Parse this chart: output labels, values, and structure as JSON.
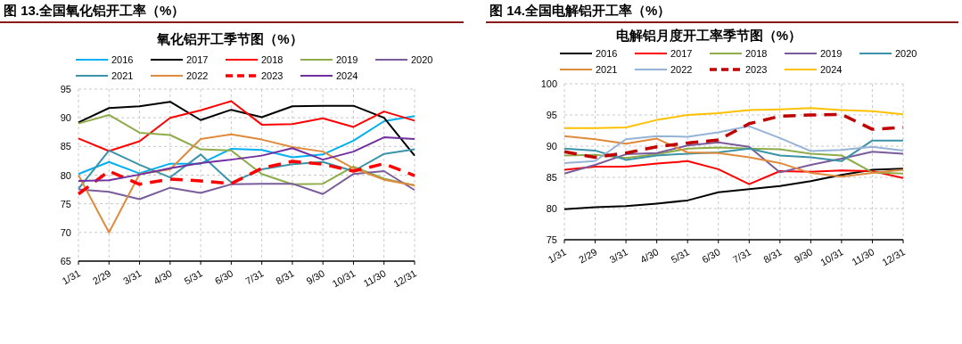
{
  "chart_data": [
    {
      "type": "line",
      "title": "图 13.全国氧化铝开工率（%）",
      "subtitle": "氧化铝开工季节图（%）",
      "categories": [
        "1/31",
        "2/29",
        "3/31",
        "4/30",
        "5/31",
        "6/30",
        "7/31",
        "8/31",
        "9/30",
        "10/31",
        "11/30",
        "12/31"
      ],
      "ylim": [
        65,
        95
      ],
      "yticks": [
        65,
        70,
        75,
        80,
        85,
        90,
        95
      ],
      "grid": true,
      "legend": "top",
      "series": [
        {
          "name": "2016",
          "color": "#00b0f0",
          "values": [
            80.2,
            82.3,
            80.3,
            82.0,
            82.0,
            84.6,
            84.4,
            83.1,
            83.6,
            86.0,
            89.4,
            90.3
          ]
        },
        {
          "name": "2017",
          "color": "#000000",
          "values": [
            89.2,
            91.7,
            92.0,
            92.8,
            89.6,
            91.4,
            90.1,
            92.0,
            92.1,
            92.1,
            90.0,
            83.4
          ]
        },
        {
          "name": "2018",
          "color": "#ff0000",
          "values": [
            86.4,
            84.2,
            85.9,
            90.0,
            91.3,
            92.9,
            88.8,
            88.9,
            89.9,
            88.4,
            91.1,
            89.5
          ]
        },
        {
          "name": "2019",
          "color": "#8fac4a",
          "values": [
            89.0,
            90.5,
            87.4,
            87.0,
            84.5,
            84.3,
            80.2,
            78.4,
            78.5,
            81.5,
            79.4,
            78.2
          ]
        },
        {
          "name": "2020",
          "color": "#7a5c9a",
          "values": [
            77.5,
            77.1,
            75.8,
            77.8,
            76.9,
            78.4,
            78.5,
            78.5,
            76.7,
            80.2,
            80.7,
            77.4
          ]
        },
        {
          "name": "2021",
          "color": "#3a93a8",
          "values": [
            77.6,
            84.3,
            81.8,
            79.6,
            83.6,
            78.7,
            81.0,
            81.9,
            82.3,
            80.7,
            83.7,
            84.5
          ]
        },
        {
          "name": "2022",
          "color": "#e08a3c",
          "values": [
            80.0,
            70.0,
            80.2,
            81.0,
            86.3,
            87.1,
            86.2,
            84.9,
            84.1,
            81.2,
            79.2,
            78.2
          ]
        },
        {
          "name": "2023",
          "color": "#ff0000",
          "line_style": "dashed",
          "values": [
            76.7,
            80.7,
            78.4,
            79.3,
            79.0,
            78.5,
            81.2,
            82.4,
            81.9,
            80.7,
            82.0,
            79.9
          ]
        },
        {
          "name": "2024",
          "color": "#7030a0",
          "values": [
            79.0,
            79.1,
            80.1,
            81.2,
            82.1,
            82.7,
            83.4,
            84.7,
            82.7,
            84.1,
            86.6,
            86.3
          ]
        }
      ]
    },
    {
      "type": "line",
      "title": "图 14.全国电解铝开工率（%）",
      "subtitle": "电解铝月度开工率季节图（%）",
      "categories": [
        "1/31",
        "2/29",
        "3/31",
        "4/30",
        "5/31",
        "6/30",
        "7/31",
        "8/31",
        "9/30",
        "10/31",
        "11/30",
        "12/31"
      ],
      "ylim": [
        75,
        100
      ],
      "yticks": [
        75,
        80,
        85,
        90,
        95,
        100
      ],
      "grid": true,
      "legend": "top",
      "series": [
        {
          "name": "2016",
          "color": "#000000",
          "values": [
            79.9,
            80.2,
            80.4,
            80.8,
            81.3,
            82.6,
            83.1,
            83.6,
            84.4,
            85.4,
            86.2,
            86.4
          ]
        },
        {
          "name": "2017",
          "color": "#ff0000",
          "values": [
            86.2,
            86.7,
            86.7,
            87.2,
            87.6,
            86.3,
            83.9,
            86.0,
            85.9,
            86.1,
            86.0,
            84.9
          ]
        },
        {
          "name": "2018",
          "color": "#8fac4a",
          "values": [
            88.5,
            88.6,
            88.1,
            88.7,
            89.6,
            89.8,
            89.6,
            89.5,
            88.8,
            88.5,
            85.8,
            85.6
          ]
        },
        {
          "name": "2019",
          "color": "#7a5c9a",
          "values": [
            85.6,
            87.0,
            88.7,
            88.9,
            90.1,
            90.6,
            89.9,
            85.8,
            87.0,
            88.0,
            89.1,
            88.8
          ]
        },
        {
          "name": "2020",
          "color": "#3a93a8",
          "values": [
            89.6,
            89.3,
            87.8,
            88.5,
            88.8,
            89.0,
            89.6,
            88.5,
            88.2,
            87.6,
            90.9,
            90.9
          ]
        },
        {
          "name": "2021",
          "color": "#e08a3c",
          "values": [
            91.6,
            91.1,
            90.4,
            91.2,
            89.0,
            88.9,
            88.2,
            87.3,
            85.7,
            85.1,
            85.7,
            86.2
          ]
        },
        {
          "name": "2022",
          "color": "#95b3d7",
          "values": [
            87.3,
            87.6,
            91.1,
            91.6,
            91.5,
            92.2,
            93.2,
            91.3,
            89.2,
            89.4,
            89.9,
            89.3
          ]
        },
        {
          "name": "2023",
          "color": "#c00000",
          "line_style": "dashed",
          "values": [
            89.1,
            88.2,
            88.9,
            89.9,
            90.5,
            91.0,
            93.6,
            94.8,
            95.0,
            95.1,
            92.7,
            93.0
          ]
        },
        {
          "name": "2024",
          "color": "#ffc000",
          "values": [
            92.9,
            92.9,
            93.0,
            94.2,
            95.0,
            95.3,
            95.8,
            95.9,
            96.1,
            95.8,
            95.6,
            95.1
          ]
        }
      ]
    }
  ]
}
